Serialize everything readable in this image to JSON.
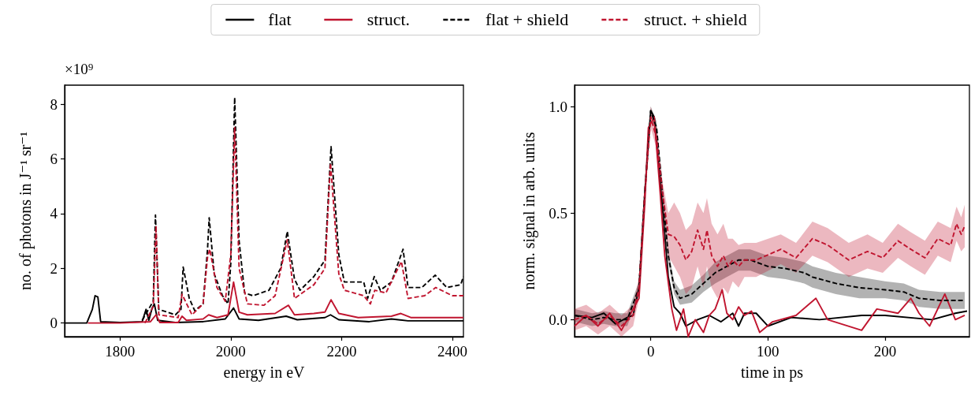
{
  "chart_data": [
    {
      "type": "line",
      "xlabel": "energy in eV",
      "ylabel": "no. of photons in J⁻¹ sr⁻¹",
      "annotations": [
        "×10⁹"
      ],
      "legend": "top",
      "xlim": [
        1700,
        2420
      ],
      "xticks": [
        1800,
        2000,
        2200,
        2400
      ],
      "ylim": [
        -0.5,
        8.7
      ],
      "yticks": [
        0,
        2,
        4,
        6,
        8
      ],
      "series": [
        {
          "name": "flat",
          "color": "#000000",
          "line_style": "solid",
          "x": [
            1700,
            1740,
            1750,
            1755,
            1760,
            1765,
            1800,
            1840,
            1847,
            1852,
            1858,
            1862,
            1868,
            1900,
            1950,
            1990,
            2005,
            2015,
            2050,
            2100,
            2120,
            2170,
            2180,
            2195,
            2250,
            2290,
            2320,
            2420
          ],
          "values": [
            0,
            0,
            0.5,
            1.0,
            0.95,
            0.05,
            0.02,
            0.05,
            0.5,
            0.1,
            0.55,
            0.7,
            0.1,
            0.02,
            0.05,
            0.15,
            0.55,
            0.15,
            0.1,
            0.25,
            0.12,
            0.2,
            0.3,
            0.12,
            0.05,
            0.15,
            0.08,
            0.08
          ]
        },
        {
          "name": "struct.",
          "color": "#c0152f",
          "line_style": "solid",
          "x": [
            1742,
            1800,
            1855,
            1865,
            1872,
            1905,
            1912,
            1920,
            1950,
            1960,
            1975,
            1995,
            2005,
            2015,
            2030,
            2080,
            2104,
            2115,
            2150,
            2170,
            2181,
            2195,
            2230,
            2290,
            2307,
            2325,
            2420
          ],
          "values": [
            0,
            0,
            0.05,
            0.3,
            0.02,
            0.02,
            0.25,
            0.1,
            0.15,
            0.3,
            0.2,
            0.3,
            1.5,
            0.4,
            0.3,
            0.35,
            0.65,
            0.3,
            0.35,
            0.4,
            0.85,
            0.35,
            0.2,
            0.25,
            0.35,
            0.2,
            0.2
          ]
        },
        {
          "name": "flat + shield",
          "color": "#000000",
          "line_style": "dashed",
          "x": [
            1840,
            1860,
            1864,
            1870,
            1900,
            1910,
            1914,
            1925,
            1935,
            1950,
            1958,
            1961,
            1970,
            1985,
            1995,
            2000,
            2007,
            2015,
            2025,
            2040,
            2069,
            2090,
            2102,
            2115,
            2125,
            2150,
            2170,
            2181,
            2195,
            2205,
            2240,
            2247,
            2259,
            2270,
            2290,
            2311,
            2320,
            2345,
            2369,
            2390,
            2415,
            2420
          ],
          "values": [
            0.1,
            0.8,
            3.95,
            0.5,
            0.3,
            0.5,
            2.05,
            0.9,
            0.45,
            0.7,
            2.7,
            3.85,
            1.8,
            1.0,
            0.7,
            2.2,
            8.25,
            3.0,
            1.1,
            1.0,
            1.2,
            2.0,
            3.35,
            1.6,
            1.2,
            1.7,
            2.3,
            6.45,
            2.5,
            1.5,
            1.5,
            0.9,
            1.7,
            1.2,
            1.5,
            2.7,
            1.3,
            1.3,
            1.75,
            1.3,
            1.4,
            1.7
          ]
        },
        {
          "name": "struct. + shield",
          "color": "#c0152f",
          "line_style": "dashed",
          "x": [
            1845,
            1860,
            1865,
            1870,
            1905,
            1912,
            1930,
            1950,
            1958,
            1962,
            1975,
            1990,
            2000,
            2007,
            2015,
            2030,
            2060,
            2080,
            2102,
            2115,
            2150,
            2170,
            2180,
            2195,
            2205,
            2240,
            2252,
            2260,
            2280,
            2308,
            2320,
            2350,
            2370,
            2400,
            2420
          ],
          "values": [
            0,
            0.6,
            3.55,
            0.3,
            0.2,
            1.05,
            0.3,
            0.7,
            2.4,
            2.7,
            1.3,
            0.8,
            2.5,
            7.15,
            2.0,
            0.7,
            0.65,
            1.0,
            3.05,
            0.9,
            1.4,
            2.0,
            5.85,
            1.8,
            1.2,
            1.0,
            0.7,
            1.2,
            1.1,
            2.25,
            0.9,
            1.0,
            1.3,
            1.0,
            1.0
          ]
        }
      ]
    },
    {
      "type": "line",
      "xlabel": "time in ps",
      "ylabel": "norm. signal in arb. units",
      "xlim": [
        -65,
        272
      ],
      "xticks": [
        0,
        100,
        200
      ],
      "ylim": [
        -0.08,
        1.1
      ],
      "yticks": [
        {
          "value": 0,
          "label": "0.0"
        },
        {
          "value": 0.5,
          "label": "0.5"
        },
        {
          "value": 1,
          "label": "1.0"
        }
      ],
      "series": [
        {
          "name": "flat",
          "color": "#000000",
          "line_style": "solid",
          "x": [
            -65,
            -50,
            -40,
            -30,
            -20,
            -15,
            -10,
            -5,
            0,
            3,
            8,
            12,
            15,
            20,
            25,
            30,
            40,
            50,
            60,
            70,
            75,
            80,
            90,
            100,
            120,
            144,
            180,
            200,
            240,
            260,
            270
          ],
          "values": [
            0.02,
            0.01,
            0.03,
            -0.02,
            0.01,
            0.02,
            0.15,
            0.6,
            0.98,
            0.95,
            0.65,
            0.4,
            0.2,
            0.06,
            0.03,
            -0.03,
            0.0,
            0.02,
            -0.01,
            0.03,
            -0.03,
            0.03,
            0.03,
            -0.03,
            0.01,
            0.0,
            0.02,
            0.02,
            0.0,
            0.03,
            0.04
          ]
        },
        {
          "name": "struct.",
          "color": "#c0152f",
          "line_style": "solid",
          "x": [
            -65,
            -55,
            -45,
            -35,
            -25,
            -20,
            -10,
            -5,
            -2,
            0,
            3,
            8,
            12,
            18,
            22,
            28,
            32,
            38,
            45,
            50,
            55,
            61,
            65,
            70,
            75,
            80,
            86,
            93,
            104,
            124,
            141,
            151,
            180,
            193,
            211,
            222,
            229,
            238,
            251,
            260,
            268
          ],
          "values": [
            -0.03,
            0.02,
            -0.03,
            0.03,
            -0.05,
            0.0,
            0.1,
            0.55,
            0.9,
            0.92,
            0.95,
            0.6,
            0.3,
            0.05,
            -0.05,
            0.05,
            -0.08,
            0.0,
            -0.06,
            0.02,
            0.05,
            0.14,
            0.03,
            0.0,
            0.06,
            0.02,
            0.04,
            -0.06,
            -0.01,
            0.02,
            0.1,
            0.0,
            -0.05,
            0.05,
            0.03,
            0.1,
            0.03,
            -0.03,
            0.12,
            0.0,
            0.02
          ]
        },
        {
          "name": "flat + shield",
          "color": "#000000",
          "line_style": "dashed",
          "x": [
            -65,
            -50,
            -40,
            -30,
            -20,
            -10,
            -5,
            0,
            5,
            10,
            15,
            20,
            25,
            35,
            45,
            55,
            65,
            75,
            85,
            100,
            115,
            131,
            138,
            158,
            178,
            200,
            216,
            229,
            247,
            268
          ],
          "values": [
            0.02,
            0.0,
            0.01,
            0.0,
            0.0,
            0.15,
            0.6,
            0.98,
            0.9,
            0.6,
            0.3,
            0.15,
            0.1,
            0.12,
            0.17,
            0.22,
            0.25,
            0.28,
            0.28,
            0.25,
            0.24,
            0.22,
            0.2,
            0.17,
            0.15,
            0.14,
            0.13,
            0.1,
            0.09,
            0.09
          ],
          "lower": [
            -0.01,
            -0.03,
            -0.02,
            -0.03,
            -0.03,
            0.12,
            0.57,
            0.96,
            0.87,
            0.57,
            0.27,
            0.12,
            0.07,
            0.08,
            0.13,
            0.17,
            0.2,
            0.23,
            0.23,
            0.2,
            0.19,
            0.17,
            0.15,
            0.12,
            0.1,
            0.1,
            0.09,
            0.06,
            0.05,
            0.05
          ],
          "upper": [
            0.05,
            0.03,
            0.04,
            0.03,
            0.03,
            0.18,
            0.63,
            1.0,
            0.93,
            0.63,
            0.33,
            0.18,
            0.14,
            0.16,
            0.21,
            0.27,
            0.3,
            0.33,
            0.33,
            0.3,
            0.29,
            0.27,
            0.25,
            0.22,
            0.2,
            0.18,
            0.17,
            0.14,
            0.13,
            0.13
          ]
        },
        {
          "name": "struct. + shield",
          "color": "#c0152f",
          "line_style": "dashed",
          "x": [
            -65,
            -55,
            -45,
            -35,
            -25,
            -15,
            -10,
            -5,
            0,
            5,
            10,
            15,
            20,
            25,
            30,
            35,
            40,
            45,
            48,
            52,
            57,
            62,
            66,
            70,
            75,
            80,
            90,
            111,
            124,
            138,
            151,
            169,
            185,
            198,
            211,
            222,
            234,
            245,
            256,
            261,
            265,
            268
          ],
          "values": [
            0.0,
            0.02,
            -0.02,
            0.02,
            -0.03,
            0.02,
            0.15,
            0.6,
            0.95,
            0.85,
            0.6,
            0.4,
            0.39,
            0.35,
            0.28,
            0.32,
            0.42,
            0.33,
            0.42,
            0.3,
            0.25,
            0.3,
            0.25,
            0.28,
            0.25,
            0.28,
            0.28,
            0.33,
            0.29,
            0.38,
            0.35,
            0.28,
            0.32,
            0.29,
            0.37,
            0.33,
            0.29,
            0.38,
            0.35,
            0.45,
            0.4,
            0.44
          ],
          "lower": [
            -0.05,
            -0.03,
            -0.07,
            -0.03,
            -0.08,
            -0.03,
            0.1,
            0.55,
            0.9,
            0.8,
            0.55,
            0.3,
            0.25,
            0.2,
            0.12,
            0.15,
            0.25,
            0.15,
            0.25,
            0.15,
            0.1,
            0.15,
            0.12,
            0.18,
            0.15,
            0.2,
            0.2,
            0.26,
            0.22,
            0.3,
            0.27,
            0.2,
            0.24,
            0.22,
            0.29,
            0.25,
            0.21,
            0.3,
            0.27,
            0.37,
            0.32,
            0.34
          ],
          "upper": [
            0.05,
            0.07,
            0.03,
            0.07,
            0.02,
            0.07,
            0.2,
            0.65,
            1.0,
            0.9,
            0.65,
            0.5,
            0.55,
            0.5,
            0.42,
            0.45,
            0.55,
            0.5,
            0.57,
            0.45,
            0.4,
            0.45,
            0.38,
            0.38,
            0.35,
            0.36,
            0.36,
            0.4,
            0.36,
            0.46,
            0.43,
            0.36,
            0.4,
            0.36,
            0.45,
            0.41,
            0.37,
            0.46,
            0.43,
            0.53,
            0.48,
            0.54
          ]
        }
      ]
    }
  ]
}
